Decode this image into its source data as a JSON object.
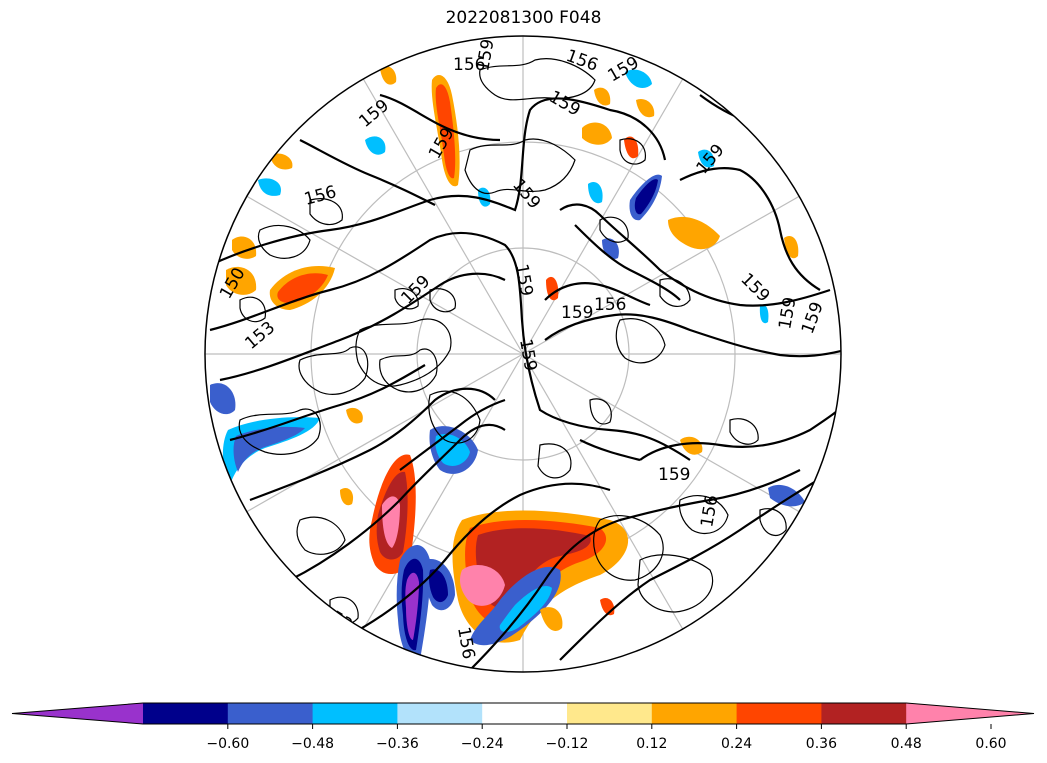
{
  "title": "2022081300 F048",
  "map": {
    "projection": "north-polar-stereographic",
    "contour_labels": [
      "156",
      "159",
      "159",
      "159",
      "156",
      "159",
      "159",
      "159",
      "156",
      "159",
      "150",
      "153",
      "159",
      "159",
      "156",
      "159",
      "159",
      "159",
      "159",
      "159",
      "159",
      "153",
      "156",
      "156"
    ]
  },
  "colorbar": {
    "extend": "both",
    "levels": [
      "−0.60",
      "−0.48",
      "−0.36",
      "−0.24",
      "−0.12",
      "0.12",
      "0.24",
      "0.36",
      "0.48",
      "0.60"
    ],
    "colors": [
      "#9932cc",
      "#00008b",
      "#3a5fcd",
      "#00bfff",
      "#b2e2fb",
      "#ffffff",
      "#ffe88c",
      "#ffa500",
      "#ff4500",
      "#b22222",
      "#ff82ab"
    ]
  }
}
